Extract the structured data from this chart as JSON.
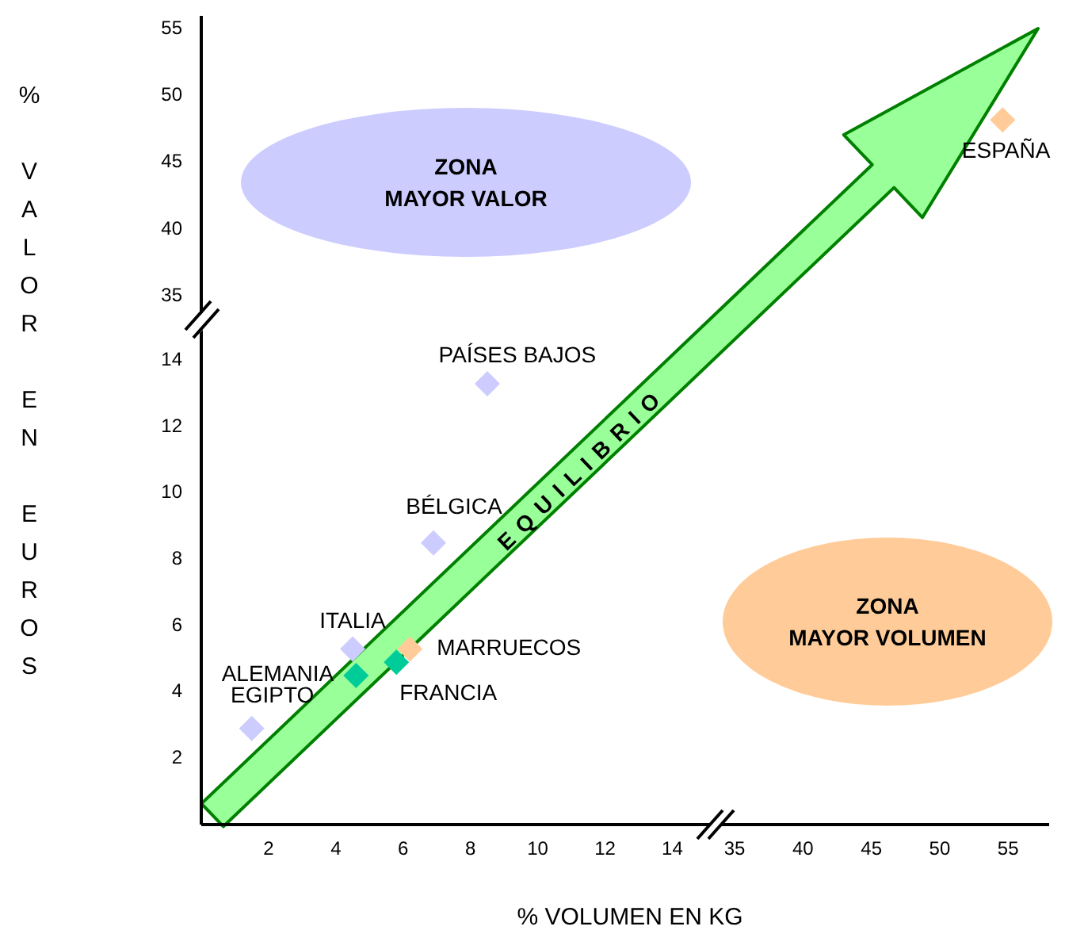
{
  "chart_data": [
    {
      "type": "scatter",
      "xlim": [
        -4,
        58
      ],
      "xticks": [
        35,
        40,
        45,
        50,
        55
      ],
      "ylim": [
        -4.6,
        56
      ],
      "yticks": [
        35,
        40,
        45,
        50,
        55
      ],
      "marker": "diamond",
      "series": [
        {
          "name": "ESPAÑA",
          "color": "#ffcc99",
          "x": [
            54.6
          ],
          "values": [
            48.2
          ]
        }
      ]
    },
    {
      "type": "scatter",
      "xlabel": "% VOLUMEN EN KG",
      "ylabel": "% VALOR EN EUROS",
      "xlim": [
        0,
        25.2
      ],
      "xticks": [
        2,
        4,
        6,
        8,
        10,
        12,
        14
      ],
      "ylim": [
        0,
        24.4
      ],
      "yticks": [
        2,
        4,
        6,
        8,
        10,
        12,
        14
      ],
      "marker": "diamond",
      "series": [
        {
          "name": "EGIPTO",
          "color": "#ccccff",
          "x": [
            1.5
          ],
          "values": [
            2.9
          ]
        },
        {
          "name": "ALEMANIA",
          "color": "#00cc99",
          "x": [
            4.6
          ],
          "values": [
            4.5
          ]
        },
        {
          "name": "ITALIA",
          "color": "#ccccff",
          "x": [
            4.5
          ],
          "values": [
            5.3
          ]
        },
        {
          "name": "FRANCIA",
          "color": "#00cc99",
          "x": [
            5.8
          ],
          "values": [
            4.9
          ]
        },
        {
          "name": "MARRUECOS",
          "color": "#ffcc99",
          "x": [
            6.2
          ],
          "values": [
            5.3
          ]
        },
        {
          "name": "BÉLGICA",
          "color": "#ccccff",
          "x": [
            6.9
          ],
          "values": [
            8.5
          ]
        },
        {
          "name": "PAÍSES BAJOS",
          "color": "#ccccff",
          "x": [
            8.5
          ],
          "values": [
            13.3
          ]
        }
      ],
      "annotations": [
        "ZONA\nMAYOR VALOR",
        "ZONA\nMAYOR VOLUMEN",
        "EQUILIBRIO"
      ]
    }
  ]
}
